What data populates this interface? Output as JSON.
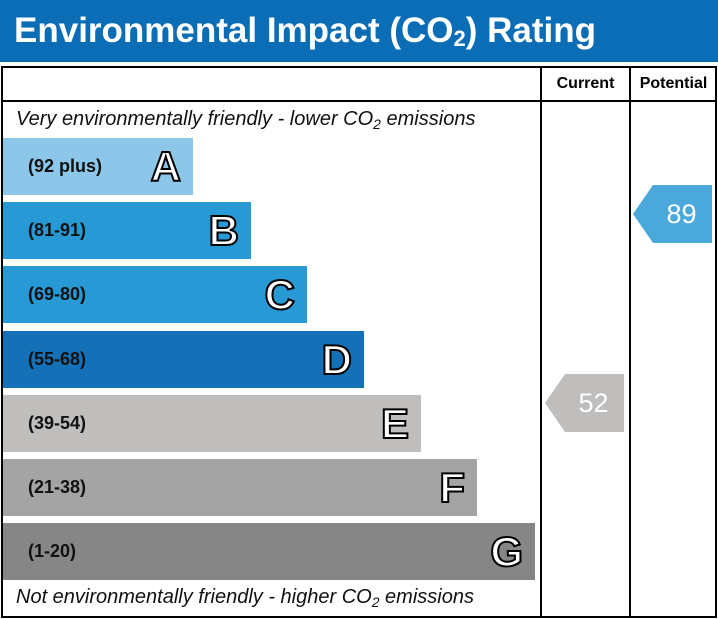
{
  "header": {
    "title_pre": "Environmental Impact (CO",
    "title_sub": "2",
    "title_post": ") Rating"
  },
  "columns": {
    "current": "Current",
    "potential": "Potential"
  },
  "notes": {
    "top_pre": "Very environmentally friendly - lower CO",
    "top_sub": "2",
    "top_post": " emissions",
    "bottom_pre": "Not environmentally friendly - higher CO",
    "bottom_sub": "2",
    "bottom_post": " emissions"
  },
  "chart_data": {
    "type": "bar",
    "bands": [
      {
        "letter": "A",
        "range": "(92 plus)",
        "color": "#8cc7ea"
      },
      {
        "letter": "B",
        "range": "(81-91)",
        "color": "#2799d4"
      },
      {
        "letter": "C",
        "range": "(69-80)",
        "color": "#2799d4"
      },
      {
        "letter": "D",
        "range": "(55-68)",
        "color": "#1471b7"
      },
      {
        "letter": "E",
        "range": "(39-54)",
        "color": "#bfbebc"
      },
      {
        "letter": "F",
        "range": "(21-38)",
        "color": "#a4a4a4"
      },
      {
        "letter": "G",
        "range": "(1-20)",
        "color": "#868686"
      }
    ],
    "current": {
      "value": "52",
      "band": "E",
      "color": "#bfbebc"
    },
    "potential": {
      "value": "89",
      "band": "B",
      "color": "#4aa9da"
    }
  }
}
